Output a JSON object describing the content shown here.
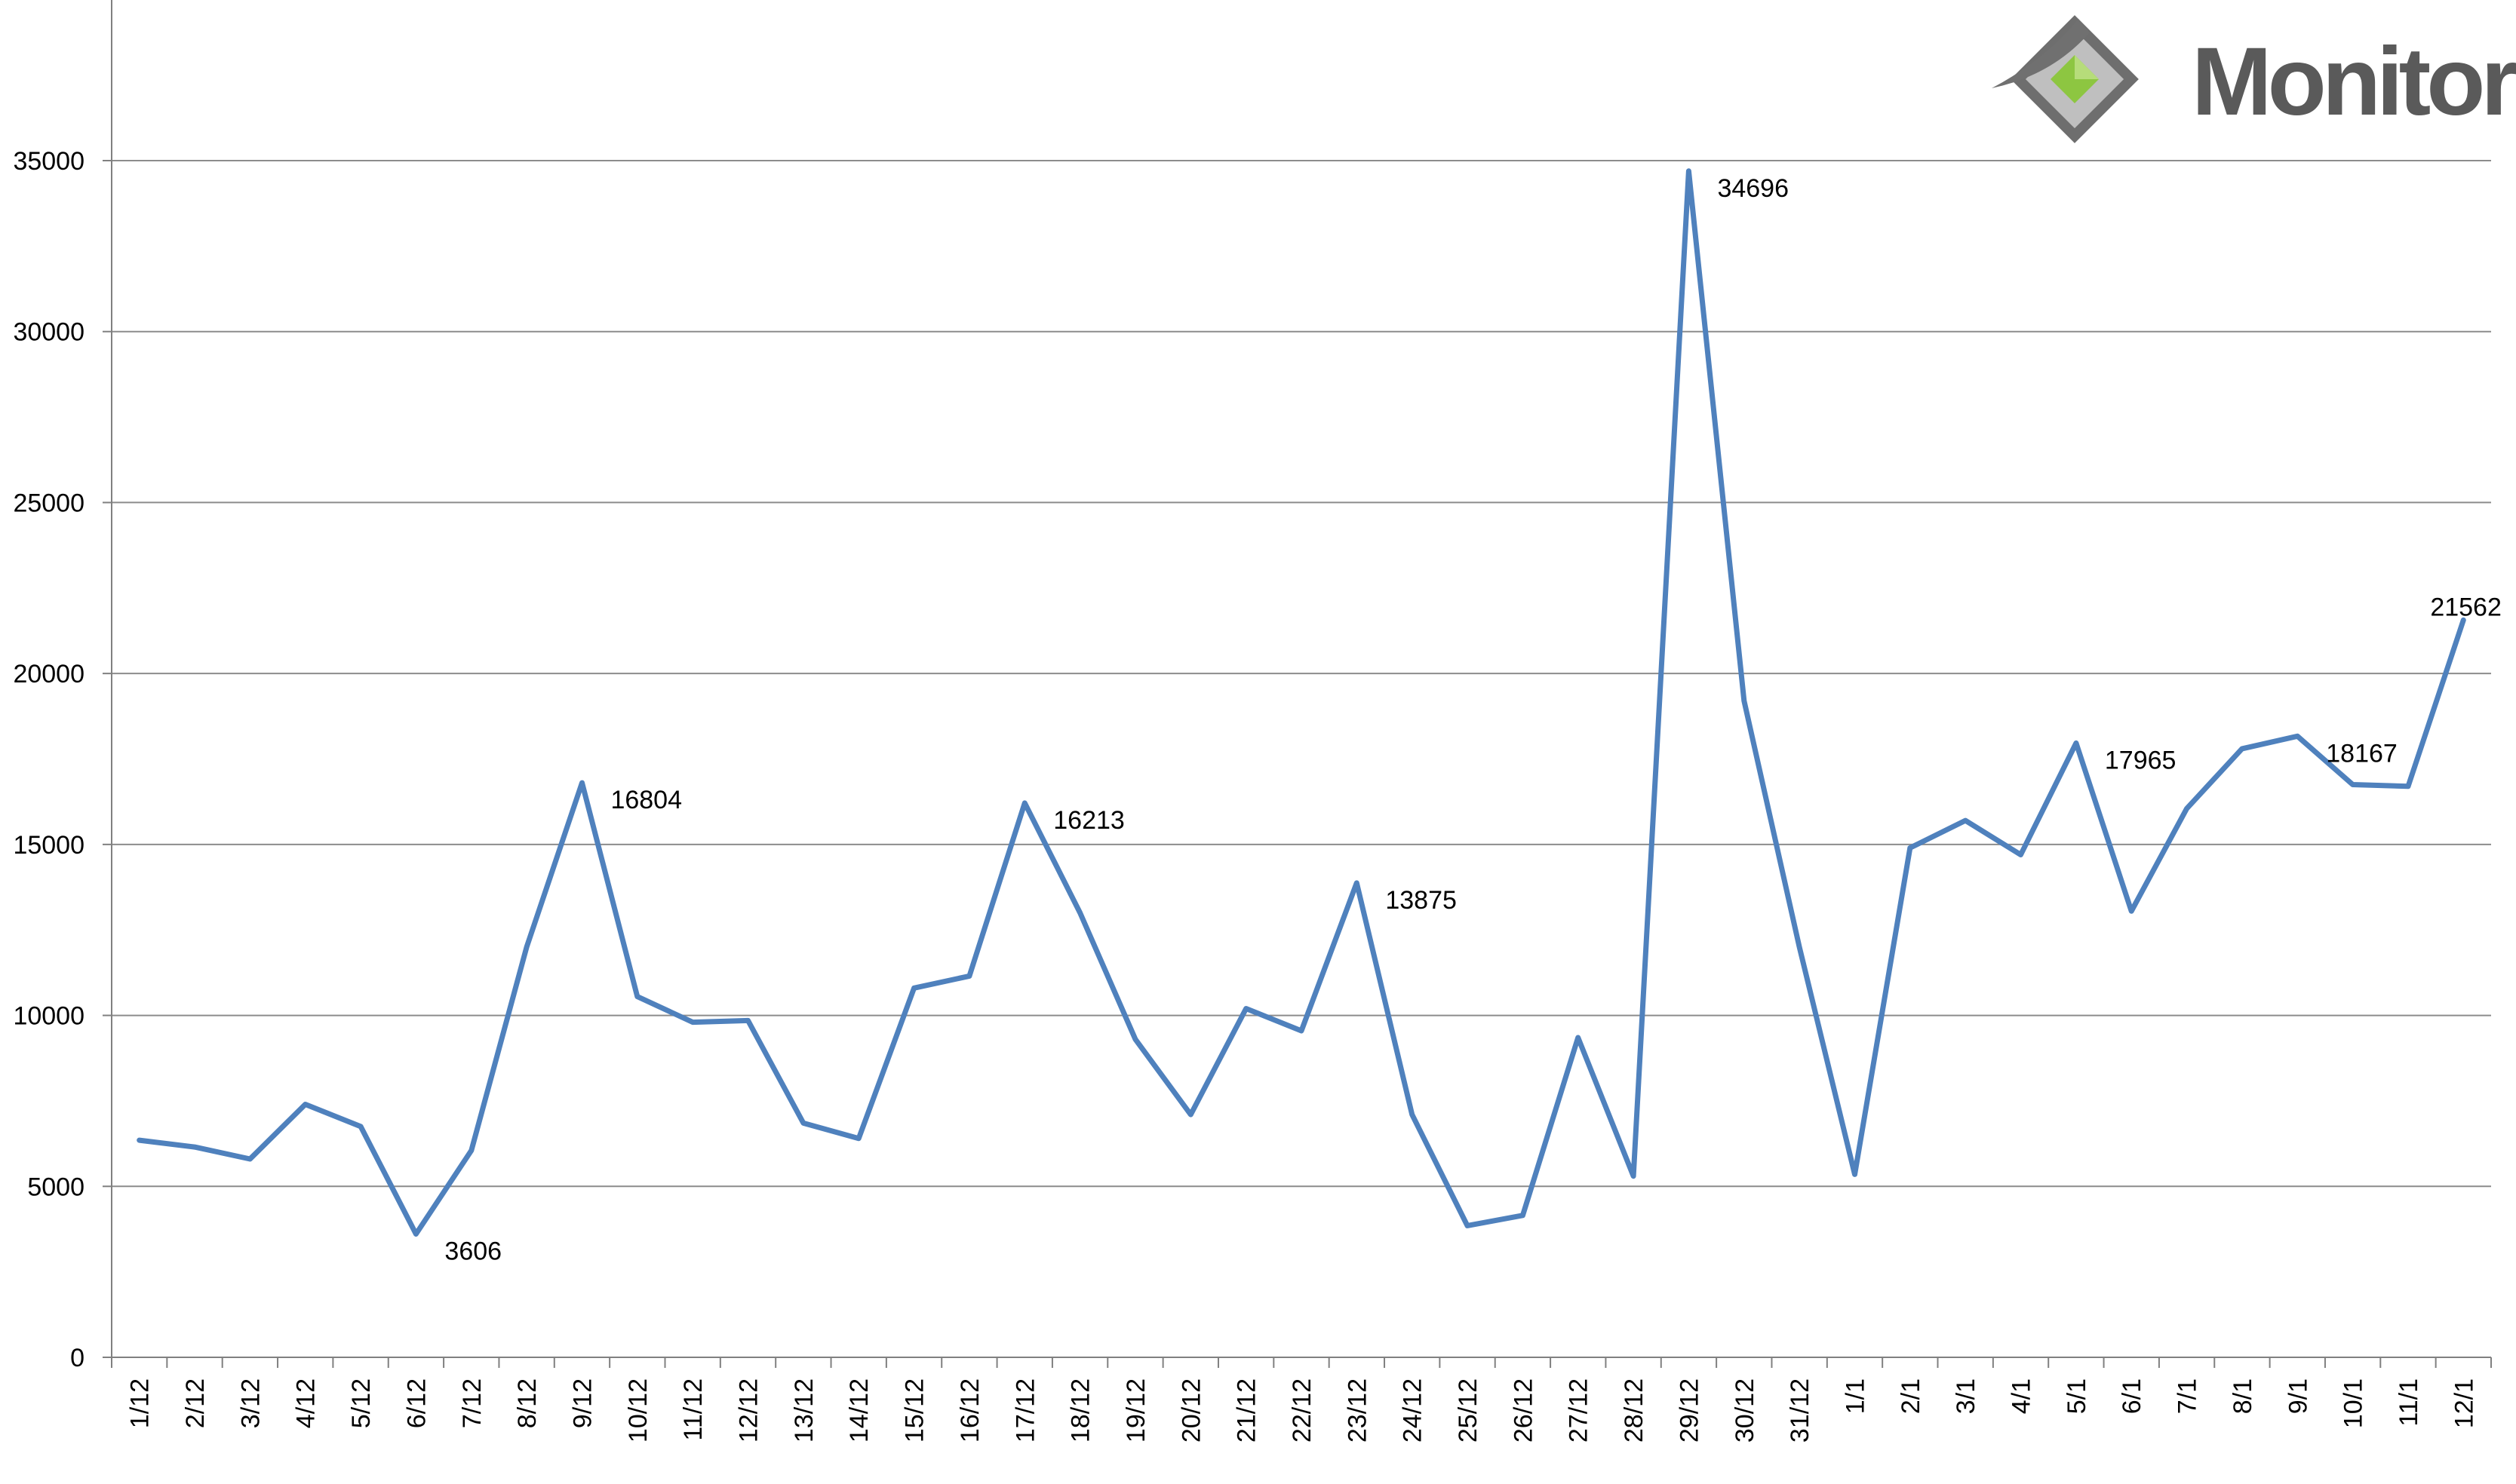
{
  "logo": {
    "text": "Monitor"
  },
  "chart_data": {
    "type": "line",
    "categories": [
      "1/12",
      "2/12",
      "3/12",
      "4/12",
      "5/12",
      "6/12",
      "7/12",
      "8/12",
      "9/12",
      "10/12",
      "11/12",
      "12/12",
      "13/12",
      "14/12",
      "15/12",
      "16/12",
      "17/12",
      "18/12",
      "19/12",
      "20/12",
      "21/12",
      "22/12",
      "23/12",
      "24/12",
      "25/12",
      "26/12",
      "27/12",
      "28/12",
      "29/12",
      "30/12",
      "31/12",
      "1/1",
      "2/1",
      "3/1",
      "4/1",
      "5/1",
      "6/1",
      "7/1",
      "8/1",
      "9/1",
      "10/1",
      "11/1",
      "12/1"
    ],
    "series": [
      {
        "color": "#4f81bd",
        "values": [
          6350,
          6150,
          5800,
          7400,
          6750,
          3606,
          6050,
          12000,
          16804,
          10550,
          9800,
          9850,
          6850,
          6400,
          10800,
          11150,
          16213,
          13000,
          9300,
          7100,
          10200,
          9550,
          13875,
          7100,
          3850,
          4150,
          9350,
          5300,
          34696,
          19200,
          12000,
          5350,
          14900,
          15700,
          14700,
          17965,
          13050,
          16050,
          17800,
          18167,
          16750,
          16700,
          21562
        ]
      }
    ],
    "data_labels": [
      {
        "index": 5,
        "text": "3606"
      },
      {
        "index": 8,
        "text": "16804"
      },
      {
        "index": 16,
        "text": "16213"
      },
      {
        "index": 22,
        "text": "13875"
      },
      {
        "index": 28,
        "text": "34696"
      },
      {
        "index": 35,
        "text": "17965"
      },
      {
        "index": 39,
        "text": "18167"
      },
      {
        "index": 42,
        "text": "21562"
      }
    ],
    "title": "",
    "xlabel": "",
    "ylabel": "",
    "ylim": [
      0,
      35000
    ],
    "yticks": [
      0,
      5000,
      10000,
      15000,
      20000,
      25000,
      30000,
      35000
    ],
    "grid": true,
    "legend": "none"
  }
}
